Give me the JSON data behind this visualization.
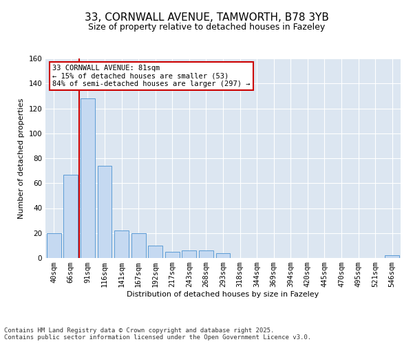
{
  "title_line1": "33, CORNWALL AVENUE, TAMWORTH, B78 3YB",
  "title_line2": "Size of property relative to detached houses in Fazeley",
  "xlabel": "Distribution of detached houses by size in Fazeley",
  "ylabel": "Number of detached properties",
  "bin_labels": [
    "40sqm",
    "66sqm",
    "91sqm",
    "116sqm",
    "141sqm",
    "167sqm",
    "192sqm",
    "217sqm",
    "243sqm",
    "268sqm",
    "293sqm",
    "318sqm",
    "344sqm",
    "369sqm",
    "394sqm",
    "420sqm",
    "445sqm",
    "470sqm",
    "495sqm",
    "521sqm",
    "546sqm"
  ],
  "bar_heights": [
    20,
    67,
    128,
    74,
    22,
    20,
    10,
    5,
    6,
    6,
    4,
    0,
    0,
    0,
    0,
    0,
    0,
    0,
    0,
    0,
    2
  ],
  "bar_color": "#c5d9f1",
  "bar_edge_color": "#5b9bd5",
  "red_line_x": 1.5,
  "annotation_text": "33 CORNWALL AVENUE: 81sqm\n← 15% of detached houses are smaller (53)\n84% of semi-detached houses are larger (297) →",
  "annotation_box_color": "#ffffff",
  "annotation_box_edge": "#cc0000",
  "footnote": "Contains HM Land Registry data © Crown copyright and database right 2025.\nContains public sector information licensed under the Open Government Licence v3.0.",
  "background_color": "#dce6f1",
  "ylim": [
    0,
    160
  ],
  "yticks": [
    0,
    20,
    40,
    60,
    80,
    100,
    120,
    140,
    160
  ],
  "title_fontsize": 11,
  "subtitle_fontsize": 9,
  "xlabel_fontsize": 8,
  "ylabel_fontsize": 8,
  "tick_fontsize": 7.5,
  "annot_fontsize": 7.5,
  "footnote_fontsize": 6.5
}
